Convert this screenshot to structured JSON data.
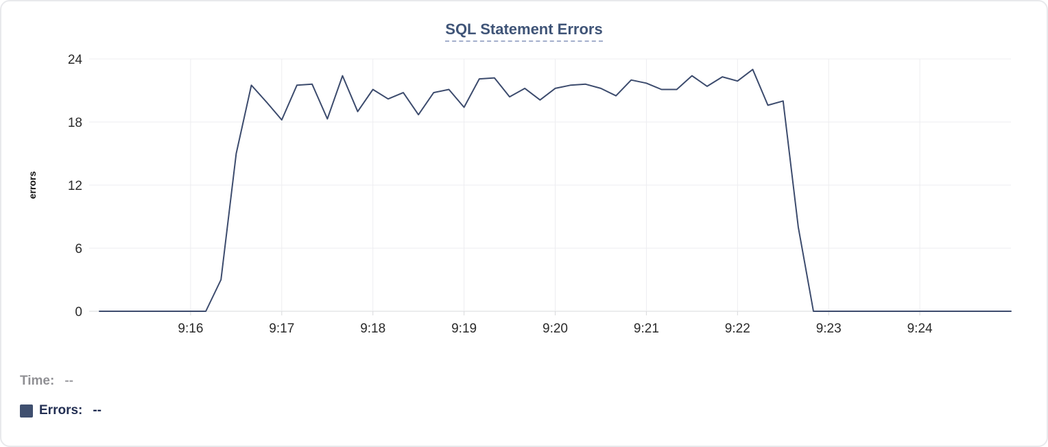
{
  "chart_data": {
    "type": "line",
    "title": "SQL Statement Errors",
    "xlabel": "",
    "ylabel": "errors",
    "ylim": [
      0,
      24
    ],
    "y_ticks": [
      0,
      6,
      12,
      18,
      24
    ],
    "x_ticks": [
      "9:16",
      "9:17",
      "9:18",
      "9:19",
      "9:20",
      "9:21",
      "9:22",
      "9:23",
      "9:24"
    ],
    "x_range": [
      "9:15:00",
      "9:25:00"
    ],
    "grid": true,
    "legend_position": "bottom-left",
    "series": [
      {
        "name": "Errors",
        "color": "#3c4b6d",
        "points": [
          [
            "9:15:00",
            0
          ],
          [
            "9:15:10",
            0
          ],
          [
            "9:15:20",
            0
          ],
          [
            "9:15:30",
            0
          ],
          [
            "9:15:40",
            0
          ],
          [
            "9:15:50",
            0
          ],
          [
            "9:16:00",
            0
          ],
          [
            "9:16:10",
            0
          ],
          [
            "9:16:20",
            3
          ],
          [
            "9:16:30",
            15
          ],
          [
            "9:16:40",
            21.5
          ],
          [
            "9:16:50",
            19.9
          ],
          [
            "9:17:00",
            18.2
          ],
          [
            "9:17:10",
            21.5
          ],
          [
            "9:17:20",
            21.6
          ],
          [
            "9:17:30",
            18.3
          ],
          [
            "9:17:40",
            22.4
          ],
          [
            "9:17:50",
            19
          ],
          [
            "9:18:00",
            21.1
          ],
          [
            "9:18:10",
            20.2
          ],
          [
            "9:18:20",
            20.8
          ],
          [
            "9:18:30",
            18.7
          ],
          [
            "9:18:40",
            20.8
          ],
          [
            "9:18:50",
            21.1
          ],
          [
            "9:19:00",
            19.4
          ],
          [
            "9:19:10",
            22.1
          ],
          [
            "9:19:20",
            22.2
          ],
          [
            "9:19:30",
            20.4
          ],
          [
            "9:19:40",
            21.2
          ],
          [
            "9:19:50",
            20.1
          ],
          [
            "9:20:00",
            21.2
          ],
          [
            "9:20:10",
            21.5
          ],
          [
            "9:20:20",
            21.6
          ],
          [
            "9:20:30",
            21.2
          ],
          [
            "9:20:40",
            20.5
          ],
          [
            "9:20:50",
            22
          ],
          [
            "9:21:00",
            21.7
          ],
          [
            "9:21:10",
            21.1
          ],
          [
            "9:21:20",
            21.1
          ],
          [
            "9:21:30",
            22.4
          ],
          [
            "9:21:40",
            21.4
          ],
          [
            "9:21:50",
            22.3
          ],
          [
            "9:22:00",
            21.9
          ],
          [
            "9:22:10",
            23
          ],
          [
            "9:22:20",
            19.6
          ],
          [
            "9:22:30",
            20
          ],
          [
            "9:22:40",
            8
          ],
          [
            "9:22:50",
            0
          ],
          [
            "9:23:00",
            0
          ],
          [
            "9:23:10",
            0
          ],
          [
            "9:23:20",
            0
          ],
          [
            "9:23:30",
            0
          ],
          [
            "9:23:40",
            0
          ],
          [
            "9:23:50",
            0
          ],
          [
            "9:24:00",
            0
          ],
          [
            "9:24:10",
            0
          ],
          [
            "9:24:20",
            0
          ],
          [
            "9:24:30",
            0
          ],
          [
            "9:24:40",
            0
          ],
          [
            "9:24:50",
            0
          ],
          [
            "9:25:00",
            0
          ]
        ]
      }
    ]
  },
  "readout": {
    "time_label": "Time:",
    "time_value": "--",
    "errors_label": "Errors:",
    "errors_value": "--"
  },
  "colors": {
    "line": "#3c4b6d",
    "swatch": "#3f4f6f",
    "title": "#3f5477",
    "grid": "#ededf0",
    "axis": "#d7d8db",
    "tick_text": "#2a2a2a",
    "card_border": "#e8e9ec"
  }
}
